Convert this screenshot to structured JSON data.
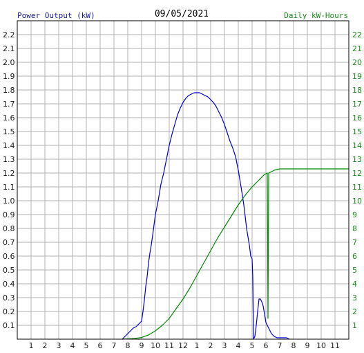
{
  "chart_data": {
    "type": "line",
    "title": "09/05/2021",
    "ylabel": "Power Output (kW)",
    "y2label": "Daily kW-Hours",
    "ylim": [
      0,
      2.3
    ],
    "y2lim": [
      0,
      23
    ],
    "y_ticks": [
      "0.1",
      "0.2",
      "0.3",
      "0.4",
      "0.5",
      "0.6",
      "0.7",
      "0.8",
      "0.9",
      "1.0",
      "1.1",
      "1.2",
      "1.3",
      "1.4",
      "1.5",
      "1.6",
      "1.7",
      "1.8",
      "1.9",
      "2.0",
      "2.1",
      "2.2"
    ],
    "y2_ticks": [
      "1",
      "2",
      "3",
      "4",
      "5",
      "6",
      "7",
      "8",
      "9",
      "10",
      "11",
      "12",
      "13",
      "14",
      "15",
      "16",
      "17",
      "18",
      "19",
      "20",
      "21",
      "22"
    ],
    "x_ticks": [
      "1",
      "2",
      "3",
      "4",
      "5",
      "6",
      "7",
      "8",
      "9",
      "10",
      "11",
      "12",
      "1",
      "2",
      "3",
      "4",
      "5",
      "6",
      "7",
      "8",
      "9",
      "10",
      "11"
    ],
    "xlim": [
      0,
      24
    ],
    "grid": true,
    "colors": {
      "power": "#0000cc",
      "energy": "#008800",
      "grid": "#b0b0b0",
      "axis": "#000000"
    },
    "series": [
      {
        "axis": "left",
        "color": "#0000cc",
        "points": [
          [
            7.6,
            0.0
          ],
          [
            7.8,
            0.02
          ],
          [
            8.0,
            0.04
          ],
          [
            8.2,
            0.06
          ],
          [
            8.4,
            0.08
          ],
          [
            8.6,
            0.09
          ],
          [
            8.8,
            0.11
          ],
          [
            9.0,
            0.13
          ],
          [
            9.1,
            0.2
          ],
          [
            9.2,
            0.28
          ],
          [
            9.3,
            0.38
          ],
          [
            9.4,
            0.45
          ],
          [
            9.5,
            0.55
          ],
          [
            9.6,
            0.62
          ],
          [
            9.7,
            0.68
          ],
          [
            9.8,
            0.75
          ],
          [
            10.0,
            0.9
          ],
          [
            10.2,
            1.0
          ],
          [
            10.4,
            1.12
          ],
          [
            10.6,
            1.2
          ],
          [
            10.8,
            1.3
          ],
          [
            11.0,
            1.4
          ],
          [
            11.2,
            1.48
          ],
          [
            11.4,
            1.55
          ],
          [
            11.6,
            1.62
          ],
          [
            11.8,
            1.67
          ],
          [
            12.0,
            1.71
          ],
          [
            12.2,
            1.74
          ],
          [
            12.4,
            1.76
          ],
          [
            12.6,
            1.77
          ],
          [
            12.8,
            1.78
          ],
          [
            13.0,
            1.78
          ],
          [
            13.2,
            1.78
          ],
          [
            13.4,
            1.77
          ],
          [
            13.6,
            1.76
          ],
          [
            13.8,
            1.75
          ],
          [
            14.0,
            1.73
          ],
          [
            14.2,
            1.71
          ],
          [
            14.4,
            1.68
          ],
          [
            14.6,
            1.64
          ],
          [
            14.8,
            1.6
          ],
          [
            15.0,
            1.55
          ],
          [
            15.2,
            1.49
          ],
          [
            15.4,
            1.43
          ],
          [
            15.6,
            1.38
          ],
          [
            15.8,
            1.32
          ],
          [
            16.0,
            1.22
          ],
          [
            16.2,
            1.1
          ],
          [
            16.4,
            0.97
          ],
          [
            16.6,
            0.8
          ],
          [
            16.8,
            0.68
          ],
          [
            16.9,
            0.6
          ],
          [
            17.0,
            0.58
          ],
          [
            17.05,
            0.44
          ],
          [
            17.1,
            0.0
          ],
          [
            17.2,
            0.02
          ],
          [
            17.3,
            0.1
          ],
          [
            17.4,
            0.2
          ],
          [
            17.5,
            0.29
          ],
          [
            17.6,
            0.29
          ],
          [
            17.7,
            0.27
          ],
          [
            17.8,
            0.24
          ],
          [
            17.9,
            0.18
          ],
          [
            18.0,
            0.12
          ],
          [
            18.2,
            0.08
          ],
          [
            18.4,
            0.04
          ],
          [
            18.6,
            0.02
          ],
          [
            18.8,
            0.01
          ],
          [
            19.0,
            0.01
          ],
          [
            19.5,
            0.01
          ],
          [
            19.7,
            0.0
          ]
        ]
      },
      {
        "axis": "right",
        "color": "#008800",
        "points": [
          [
            7.6,
            0.0
          ],
          [
            8.0,
            0.02
          ],
          [
            8.5,
            0.05
          ],
          [
            9.0,
            0.12
          ],
          [
            9.5,
            0.3
          ],
          [
            10.0,
            0.6
          ],
          [
            10.5,
            1.0
          ],
          [
            11.0,
            1.5
          ],
          [
            11.5,
            2.2
          ],
          [
            12.0,
            2.9
          ],
          [
            12.5,
            3.7
          ],
          [
            13.0,
            4.6
          ],
          [
            13.5,
            5.5
          ],
          [
            14.0,
            6.4
          ],
          [
            14.5,
            7.3
          ],
          [
            15.0,
            8.1
          ],
          [
            15.5,
            8.9
          ],
          [
            16.0,
            9.7
          ],
          [
            16.5,
            10.4
          ],
          [
            17.0,
            11.0
          ],
          [
            17.5,
            11.5
          ],
          [
            17.9,
            11.9
          ],
          [
            18.1,
            12.0
          ],
          [
            18.15,
            1.5
          ],
          [
            18.2,
            12.0
          ],
          [
            18.6,
            12.2
          ],
          [
            19.0,
            12.3
          ],
          [
            19.5,
            12.3
          ],
          [
            24.0,
            12.3
          ]
        ]
      }
    ]
  }
}
